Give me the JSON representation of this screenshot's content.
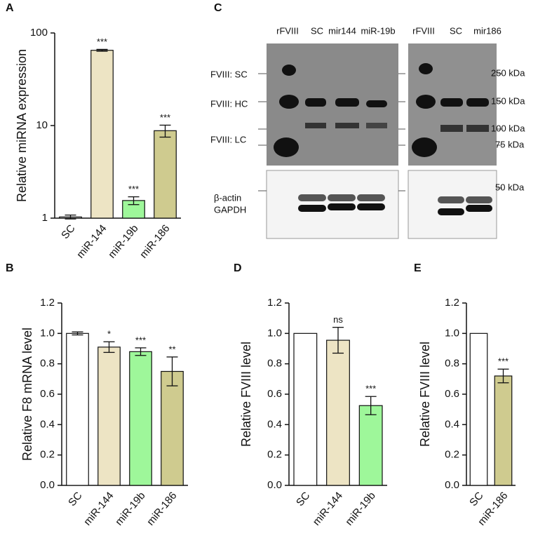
{
  "chart_data": [
    {
      "type": "bar",
      "panel_label": "A",
      "ylabel": "Relative miRNA expression",
      "yscale": "log",
      "categories": [
        "SC",
        "miR-144",
        "miR-19b",
        "miR-186"
      ],
      "values": [
        1.03,
        65,
        1.55,
        8.8
      ],
      "errors": [
        0.05,
        1.5,
        0.15,
        1.3
      ],
      "annotations": [
        null,
        "***",
        "***",
        "***"
      ],
      "colors": [
        "#ffffff",
        "#ede4c4",
        "#9ef79a",
        "#cfcb8f"
      ],
      "ylim": [
        1,
        100
      ],
      "yticks": [
        1,
        10,
        100
      ]
    },
    {
      "type": "bar",
      "panel_label": "B",
      "ylabel": "Relative F8 mRNA level",
      "categories": [
        "SC",
        "miR-144",
        "miR-19b",
        "miR-186"
      ],
      "values": [
        1.0,
        0.91,
        0.88,
        0.75
      ],
      "errors": [
        0.01,
        0.035,
        0.025,
        0.095
      ],
      "annotations": [
        null,
        "*",
        "***",
        "**"
      ],
      "colors": [
        "#ffffff",
        "#ede4c4",
        "#9ef79a",
        "#cfcb8f"
      ],
      "ylim": [
        0,
        1.2
      ],
      "yticks": [
        {
          "value": 0,
          "label": "0.0"
        },
        0.2,
        0.4,
        0.6,
        0.8,
        {
          "value": 1,
          "label": "1.0"
        },
        1.2
      ]
    },
    {
      "type": "bar",
      "panel_label": "D",
      "ylabel": "Relative FVIII level",
      "categories": [
        "SC",
        "miR-144",
        "miR-19b"
      ],
      "values": [
        1.0,
        0.955,
        0.525
      ],
      "errors": [
        null,
        0.085,
        0.06
      ],
      "annotations": [
        null,
        "ns",
        "***"
      ],
      "colors": [
        "#ffffff",
        "#ede4c4",
        "#9ef79a"
      ],
      "ylim": [
        0,
        1.2
      ],
      "yticks": [
        {
          "value": 0,
          "label": "0.0"
        },
        0.2,
        0.4,
        0.6,
        0.8,
        {
          "value": 1,
          "label": "1.0"
        },
        1.2
      ]
    },
    {
      "type": "bar",
      "panel_label": "E",
      "ylabel": "Relative FVIII level",
      "categories": [
        "SC",
        "miR-186"
      ],
      "values": [
        1.0,
        0.72
      ],
      "errors": [
        null,
        0.045
      ],
      "annotations": [
        null,
        "***"
      ],
      "colors": [
        "#ffffff",
        "#cfcb8f"
      ],
      "ylim": [
        0,
        1.2
      ],
      "yticks": [
        {
          "value": 0,
          "label": "0.0"
        },
        0.2,
        0.4,
        0.6,
        0.8,
        {
          "value": 1,
          "label": "1.0"
        },
        1.2
      ]
    }
  ],
  "blot": {
    "panel_label": "C",
    "lanes": [
      "rFVIII",
      "SC",
      "mir144",
      "miR-19b",
      "rFVIII",
      "SC",
      "mir186"
    ],
    "bands": [
      "FVIII: SC",
      "FVIII: HC",
      "FVIII: LC"
    ],
    "loading": [
      "β-actin",
      "GAPDH"
    ],
    "markers": [
      "250 kDa",
      "150 kDa",
      "100 kDa",
      "75 kDa",
      "50 kDa"
    ]
  }
}
